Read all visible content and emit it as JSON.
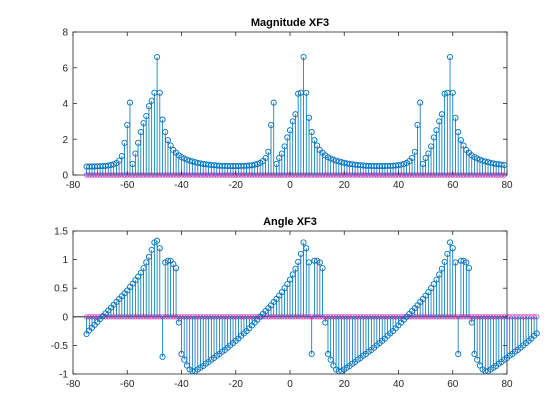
{
  "chart_data": [
    {
      "type": "stem",
      "title": "Magnitude XF3",
      "xlim": [
        -80,
        80
      ],
      "ylim": [
        0,
        8
      ],
      "xticks": [
        -80,
        -60,
        -40,
        -20,
        0,
        20,
        40,
        60,
        80
      ],
      "yticks": [
        0,
        2,
        4,
        6,
        8
      ],
      "x_range": [
        -75,
        75
      ],
      "grid": false,
      "series": [
        {
          "color": "#0072bd",
          "marker": "circle",
          "values": [
            0.47,
            0.47,
            0.48,
            0.48,
            0.49,
            0.49,
            0.5,
            0.51,
            0.53,
            0.56,
            0.6,
            0.67,
            0.8,
            1.06,
            1.8,
            2.8,
            4.05,
            0.62,
            1.2,
            1.8,
            2.4,
            2.9,
            3.3,
            3.85,
            4.15,
            4.6,
            6.6,
            4.6,
            3.1,
            2.4,
            1.95,
            1.65,
            1.4,
            1.25,
            1.1,
            1.0,
            0.93,
            0.86,
            0.8,
            0.76,
            0.72,
            0.68,
            0.65,
            0.62,
            0.6,
            0.58,
            0.56,
            0.55,
            0.53,
            0.52,
            0.51,
            0.51,
            0.5,
            0.5,
            0.5,
            0.5,
            0.5,
            0.51,
            0.51,
            0.52,
            0.53,
            0.55,
            0.58,
            0.62,
            0.68,
            0.78,
            0.95,
            1.3,
            2.8,
            4.05,
            0.62,
            0.95,
            1.2,
            1.6,
            2.1,
            2.5,
            3.0,
            3.4,
            4.55,
            4.6,
            6.6,
            4.6,
            3.2,
            2.4,
            1.95,
            1.65,
            1.4,
            1.25,
            1.1,
            1.0,
            0.93,
            0.86,
            0.8,
            0.76,
            0.72,
            0.68,
            0.65,
            0.62,
            0.6,
            0.58,
            0.56,
            0.55,
            0.53,
            0.52,
            0.51,
            0.51,
            0.5,
            0.5,
            0.5,
            0.5,
            0.5,
            0.51,
            0.51,
            0.52,
            0.53,
            0.55,
            0.58,
            0.62,
            0.68,
            0.78,
            0.95,
            1.3,
            2.8,
            4.05,
            0.62,
            0.95,
            1.2,
            1.6,
            2.1,
            2.5,
            3.0,
            3.4,
            4.55,
            4.6,
            6.6,
            4.6,
            3.2,
            2.4,
            1.95,
            1.65,
            1.4,
            1.25,
            1.1,
            1.0,
            0.93,
            0.86,
            0.8,
            0.76,
            0.72,
            0.68,
            0.65,
            0.62,
            0.6,
            0.58,
            0.56
          ]
        },
        {
          "color": "#c040c0",
          "marker": "circle",
          "values": "all zero"
        }
      ]
    },
    {
      "type": "stem",
      "title": "Angle XF3",
      "xlim": [
        -80,
        80
      ],
      "ylim": [
        -1,
        1.5
      ],
      "xticks": [
        -80,
        -60,
        -40,
        -20,
        0,
        20,
        40,
        60,
        80
      ],
      "yticks": [
        -1,
        -0.5,
        0,
        0.5,
        1,
        1.5
      ],
      "x_range": [
        -75,
        75
      ],
      "grid": false,
      "series": [
        {
          "color": "#0072bd",
          "marker": "circle",
          "values": [
            -0.3,
            -0.24,
            -0.19,
            -0.14,
            -0.09,
            -0.04,
            0.01,
            0.06,
            0.11,
            0.16,
            0.21,
            0.26,
            0.31,
            0.36,
            0.41,
            0.46,
            0.52,
            0.58,
            0.64,
            0.7,
            0.77,
            0.85,
            0.95,
            1.05,
            1.17,
            1.3,
            1.33,
            1.2,
            -0.7,
            0.95,
            0.98,
            0.98,
            0.92,
            0.85,
            -0.1,
            -0.65,
            -0.75,
            -0.85,
            -0.92,
            -0.95,
            -0.95,
            -0.92,
            -0.89,
            -0.86,
            -0.82,
            -0.79,
            -0.75,
            -0.72,
            -0.68,
            -0.65,
            -0.61,
            -0.58,
            -0.54,
            -0.5,
            -0.46,
            -0.42,
            -0.38,
            -0.33,
            -0.29,
            -0.25,
            -0.2,
            -0.15,
            -0.1,
            -0.05,
            0.0,
            0.05,
            0.1,
            0.15,
            0.2,
            0.26,
            0.31,
            0.37,
            0.43,
            0.5,
            0.57,
            0.65,
            0.74,
            0.84,
            0.96,
            1.1,
            1.3,
            1.2,
            0.95,
            -0.65,
            0.98,
            0.98,
            0.95,
            0.85,
            -0.1,
            -0.65,
            -0.75,
            -0.85,
            -0.92,
            -0.95,
            -0.95,
            -0.92,
            -0.89,
            -0.86,
            -0.82,
            -0.79,
            -0.75,
            -0.72,
            -0.68,
            -0.65,
            -0.61,
            -0.58,
            -0.54,
            -0.5,
            -0.46,
            -0.42,
            -0.38,
            -0.33,
            -0.29,
            -0.25,
            -0.2,
            -0.15,
            -0.1,
            -0.05,
            0.0,
            0.05,
            0.1,
            0.15,
            0.2,
            0.26,
            0.31,
            0.37,
            0.43,
            0.5,
            0.57,
            0.65,
            0.74,
            0.84,
            0.96,
            1.1,
            1.3,
            1.2,
            0.95,
            -0.65,
            0.98,
            0.98,
            0.95,
            0.85,
            -0.1,
            -0.65,
            -0.75,
            -0.85,
            -0.92,
            -0.95,
            -0.95,
            -0.92,
            -0.89,
            -0.86,
            -0.82,
            -0.79,
            -0.75,
            -0.72,
            -0.68,
            -0.65,
            -0.61,
            -0.58,
            -0.54,
            -0.5,
            -0.46,
            -0.42,
            -0.38,
            -0.33,
            -0.29
          ]
        },
        {
          "color": "#c040c0",
          "marker": "circle",
          "values": "all zero"
        }
      ]
    }
  ]
}
